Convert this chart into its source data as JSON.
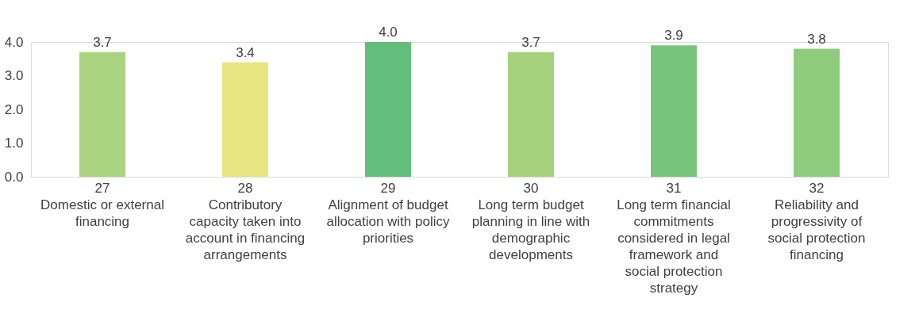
{
  "chart_data": {
    "type": "bar",
    "categories": [
      "27\nDomestic or external\nfinancing",
      "28\nContributory\ncapacity taken into\naccount in financing\narrangements",
      "29\nAlignment of budget\nallocation with policy\npriorities",
      "30\nLong term budget\nplanning in line with\ndemographic\ndevelopments",
      "31\nLong term financial\ncommitments\nconsidered in legal\nframework and\nsocial protection\nstrategy",
      "32\nReliability and\nprogressivity of\nsocial protection\nfinancing"
    ],
    "values": [
      3.7,
      3.4,
      4.0,
      3.7,
      3.9,
      3.8
    ],
    "colors": [
      "#a9d37e",
      "#e8e583",
      "#63be7b",
      "#a6d27d",
      "#77c47d",
      "#8fcb7d"
    ],
    "ylim": [
      0,
      4
    ],
    "yticks": [
      {
        "value": 0,
        "label": "0.0"
      },
      {
        "value": 1,
        "label": "1.0"
      },
      {
        "value": 2,
        "label": "2.0"
      },
      {
        "value": 3,
        "label": "3.0"
      },
      {
        "value": 4,
        "label": "4.0"
      }
    ],
    "value_labels": [
      "3.7",
      "3.4",
      "4.0",
      "3.7",
      "3.9",
      "3.8"
    ],
    "grid": false
  }
}
